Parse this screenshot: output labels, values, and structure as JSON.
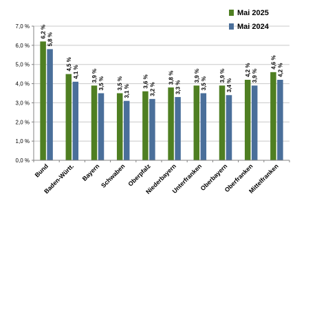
{
  "chart_data": {
    "type": "bar",
    "categories": [
      "Bund",
      "Baden-Württ.",
      "Bayern",
      "Schwaben",
      "Oberpfalz",
      "Niederbayern",
      "Unterfranken",
      "Oberbayern",
      "Oberfranken",
      "Mittelfranken"
    ],
    "series": [
      {
        "name": "Mai 2025",
        "color": "#4f7f22",
        "values": [
          6.2,
          4.5,
          3.9,
          3.5,
          3.6,
          3.8,
          3.9,
          3.9,
          4.2,
          4.6
        ],
        "labels": [
          "6,2 %",
          "4,5 %",
          "3,9 %",
          "3,5 %",
          "3,6 %",
          "3,8 %",
          "3,9 %",
          "3,9 %",
          "4,2 %",
          "4,6 %"
        ]
      },
      {
        "name": "Mai 2024",
        "color": "#4a6f9a",
        "values": [
          5.8,
          4.1,
          3.5,
          3.1,
          3.2,
          3.3,
          3.5,
          3.4,
          3.9,
          4.2
        ],
        "labels": [
          "5,8 %",
          "4,1 %",
          "3,5 %",
          "3,1 %",
          "3,2 %",
          "3,3 %",
          "3,5 %",
          "3,4 %",
          "3,9 %",
          "4,2 %"
        ]
      }
    ],
    "y_ticks": [
      0,
      1,
      2,
      3,
      4,
      5,
      6,
      7
    ],
    "y_tick_labels": [
      "0,0 %",
      "1,0 %",
      "2,0 %",
      "3,0 %",
      "4,0 %",
      "5,0 %",
      "6,0 %",
      "7,0 %"
    ],
    "ylim": [
      0,
      7
    ],
    "grid": true,
    "legend_position": "top-right",
    "title": "",
    "xlabel": "",
    "ylabel": ""
  }
}
